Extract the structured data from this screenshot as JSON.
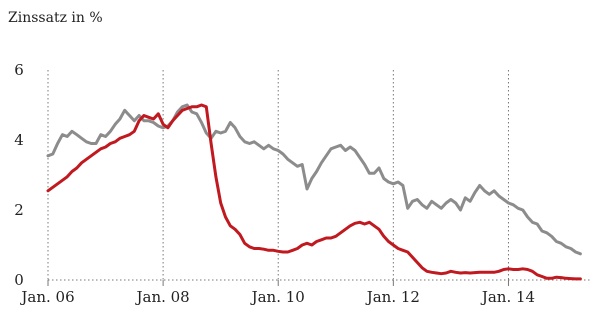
{
  "chart_data": {
    "type": "line",
    "title": "",
    "xlabel": "",
    "ylabel": "Zinssatz in %",
    "xlim": [
      "2006-01",
      "2015-06"
    ],
    "ylim": [
      0,
      6
    ],
    "y_ticks": [
      {
        "value": 0,
        "label": "0"
      },
      {
        "value": 2,
        "label": "2"
      },
      {
        "value": 4,
        "label": "4"
      },
      {
        "value": 6,
        "label": "6"
      }
    ],
    "x_ticks": [
      {
        "value": "2006-01",
        "label": "Jan. 06"
      },
      {
        "value": "2008-01",
        "label": "Jan. 08"
      },
      {
        "value": "2010-01",
        "label": "Jan. 10"
      },
      {
        "value": "2012-01",
        "label": "Jan. 12"
      },
      {
        "value": "2014-01",
        "label": "Jan. 14"
      }
    ],
    "grid": "vertical dotted lines at x ticks",
    "legend": "none",
    "series": [
      {
        "color": "#8c8c8c",
        "points": [
          [
            "2006-01",
            3.55
          ],
          [
            "2006-02",
            3.6
          ],
          [
            "2006-03",
            3.9
          ],
          [
            "2006-04",
            4.15
          ],
          [
            "2006-05",
            4.1
          ],
          [
            "2006-06",
            4.25
          ],
          [
            "2006-07",
            4.15
          ],
          [
            "2006-08",
            4.05
          ],
          [
            "2006-09",
            3.95
          ],
          [
            "2006-10",
            3.9
          ],
          [
            "2006-11",
            3.9
          ],
          [
            "2006-12",
            4.15
          ],
          [
            "2007-01",
            4.1
          ],
          [
            "2007-02",
            4.25
          ],
          [
            "2007-03",
            4.45
          ],
          [
            "2007-04",
            4.6
          ],
          [
            "2007-05",
            4.85
          ],
          [
            "2007-06",
            4.7
          ],
          [
            "2007-07",
            4.55
          ],
          [
            "2007-08",
            4.7
          ],
          [
            "2007-09",
            4.55
          ],
          [
            "2007-10",
            4.55
          ],
          [
            "2007-11",
            4.5
          ],
          [
            "2007-12",
            4.4
          ],
          [
            "2008-01",
            4.35
          ],
          [
            "2008-02",
            4.4
          ],
          [
            "2008-03",
            4.55
          ],
          [
            "2008-04",
            4.8
          ],
          [
            "2008-05",
            4.95
          ],
          [
            "2008-06",
            5.0
          ],
          [
            "2008-07",
            4.8
          ],
          [
            "2008-08",
            4.75
          ],
          [
            "2008-09",
            4.5
          ],
          [
            "2008-10",
            4.2
          ],
          [
            "2008-11",
            4.05
          ],
          [
            "2008-12",
            4.25
          ],
          [
            "2009-01",
            4.2
          ],
          [
            "2009-02",
            4.25
          ],
          [
            "2009-03",
            4.5
          ],
          [
            "2009-04",
            4.35
          ],
          [
            "2009-05",
            4.1
          ],
          [
            "2009-06",
            3.95
          ],
          [
            "2009-07",
            3.9
          ],
          [
            "2009-08",
            3.95
          ],
          [
            "2009-09",
            3.85
          ],
          [
            "2009-10",
            3.75
          ],
          [
            "2009-11",
            3.85
          ],
          [
            "2009-12",
            3.75
          ],
          [
            "2010-01",
            3.7
          ],
          [
            "2010-02",
            3.6
          ],
          [
            "2010-03",
            3.45
          ],
          [
            "2010-04",
            3.35
          ],
          [
            "2010-05",
            3.25
          ],
          [
            "2010-06",
            3.3
          ],
          [
            "2010-07",
            2.6
          ],
          [
            "2010-08",
            2.9
          ],
          [
            "2010-09",
            3.1
          ],
          [
            "2010-10",
            3.35
          ],
          [
            "2010-11",
            3.55
          ],
          [
            "2010-12",
            3.75
          ],
          [
            "2011-01",
            3.8
          ],
          [
            "2011-02",
            3.85
          ],
          [
            "2011-03",
            3.7
          ],
          [
            "2011-04",
            3.8
          ],
          [
            "2011-05",
            3.7
          ],
          [
            "2011-06",
            3.5
          ],
          [
            "2011-07",
            3.3
          ],
          [
            "2011-08",
            3.05
          ],
          [
            "2011-09",
            3.05
          ],
          [
            "2011-10",
            3.2
          ],
          [
            "2011-11",
            2.9
          ],
          [
            "2011-12",
            2.8
          ],
          [
            "2012-01",
            2.75
          ],
          [
            "2012-02",
            2.8
          ],
          [
            "2012-03",
            2.7
          ],
          [
            "2012-04",
            2.05
          ],
          [
            "2012-05",
            2.25
          ],
          [
            "2012-06",
            2.3
          ],
          [
            "2012-07",
            2.15
          ],
          [
            "2012-08",
            2.05
          ],
          [
            "2012-09",
            2.25
          ],
          [
            "2012-10",
            2.15
          ],
          [
            "2012-11",
            2.05
          ],
          [
            "2012-12",
            2.2
          ],
          [
            "2013-01",
            2.3
          ],
          [
            "2013-02",
            2.2
          ],
          [
            "2013-03",
            2.0
          ],
          [
            "2013-04",
            2.35
          ],
          [
            "2013-05",
            2.25
          ],
          [
            "2013-06",
            2.5
          ],
          [
            "2013-07",
            2.7
          ],
          [
            "2013-08",
            2.55
          ],
          [
            "2013-09",
            2.45
          ],
          [
            "2013-10",
            2.55
          ],
          [
            "2013-11",
            2.4
          ],
          [
            "2013-12",
            2.3
          ],
          [
            "2014-01",
            2.2
          ],
          [
            "2014-02",
            2.15
          ],
          [
            "2014-03",
            2.05
          ],
          [
            "2014-04",
            2.0
          ],
          [
            "2014-05",
            1.8
          ],
          [
            "2014-06",
            1.65
          ],
          [
            "2014-07",
            1.6
          ],
          [
            "2014-08",
            1.4
          ],
          [
            "2014-09",
            1.35
          ],
          [
            "2014-10",
            1.25
          ],
          [
            "2014-11",
            1.1
          ],
          [
            "2014-12",
            1.05
          ],
          [
            "2015-01",
            0.95
          ],
          [
            "2015-02",
            0.9
          ],
          [
            "2015-03",
            0.8
          ],
          [
            "2015-04",
            0.75
          ]
        ]
      },
      {
        "color": "#c0191f",
        "points": [
          [
            "2006-01",
            2.55
          ],
          [
            "2006-02",
            2.65
          ],
          [
            "2006-03",
            2.75
          ],
          [
            "2006-04",
            2.85
          ],
          [
            "2006-05",
            2.95
          ],
          [
            "2006-06",
            3.1
          ],
          [
            "2006-07",
            3.2
          ],
          [
            "2006-08",
            3.35
          ],
          [
            "2006-09",
            3.45
          ],
          [
            "2006-10",
            3.55
          ],
          [
            "2006-11",
            3.65
          ],
          [
            "2006-12",
            3.75
          ],
          [
            "2007-01",
            3.8
          ],
          [
            "2007-02",
            3.9
          ],
          [
            "2007-03",
            3.95
          ],
          [
            "2007-04",
            4.05
          ],
          [
            "2007-05",
            4.1
          ],
          [
            "2007-06",
            4.15
          ],
          [
            "2007-07",
            4.25
          ],
          [
            "2007-08",
            4.55
          ],
          [
            "2007-09",
            4.7
          ],
          [
            "2007-10",
            4.65
          ],
          [
            "2007-11",
            4.6
          ],
          [
            "2007-12",
            4.75
          ],
          [
            "2008-01",
            4.45
          ],
          [
            "2008-02",
            4.35
          ],
          [
            "2008-03",
            4.55
          ],
          [
            "2008-04",
            4.7
          ],
          [
            "2008-05",
            4.85
          ],
          [
            "2008-06",
            4.9
          ],
          [
            "2008-07",
            4.95
          ],
          [
            "2008-08",
            4.95
          ],
          [
            "2008-09",
            5.0
          ],
          [
            "2008-10",
            4.95
          ],
          [
            "2008-11",
            3.9
          ],
          [
            "2008-12",
            2.95
          ],
          [
            "2009-01",
            2.2
          ],
          [
            "2009-02",
            1.8
          ],
          [
            "2009-03",
            1.55
          ],
          [
            "2009-04",
            1.45
          ],
          [
            "2009-05",
            1.3
          ],
          [
            "2009-06",
            1.05
          ],
          [
            "2009-07",
            0.95
          ],
          [
            "2009-08",
            0.9
          ],
          [
            "2009-09",
            0.9
          ],
          [
            "2009-10",
            0.88
          ],
          [
            "2009-11",
            0.85
          ],
          [
            "2009-12",
            0.85
          ],
          [
            "2010-01",
            0.82
          ],
          [
            "2010-02",
            0.8
          ],
          [
            "2010-03",
            0.8
          ],
          [
            "2010-04",
            0.85
          ],
          [
            "2010-05",
            0.9
          ],
          [
            "2010-06",
            1.0
          ],
          [
            "2010-07",
            1.05
          ],
          [
            "2010-08",
            1.0
          ],
          [
            "2010-09",
            1.1
          ],
          [
            "2010-10",
            1.15
          ],
          [
            "2010-11",
            1.2
          ],
          [
            "2010-12",
            1.2
          ],
          [
            "2011-01",
            1.25
          ],
          [
            "2011-02",
            1.35
          ],
          [
            "2011-03",
            1.45
          ],
          [
            "2011-04",
            1.55
          ],
          [
            "2011-05",
            1.62
          ],
          [
            "2011-06",
            1.65
          ],
          [
            "2011-07",
            1.6
          ],
          [
            "2011-08",
            1.65
          ],
          [
            "2011-09",
            1.55
          ],
          [
            "2011-10",
            1.45
          ],
          [
            "2011-11",
            1.25
          ],
          [
            "2011-12",
            1.1
          ],
          [
            "2012-01",
            1.0
          ],
          [
            "2012-02",
            0.9
          ],
          [
            "2012-03",
            0.85
          ],
          [
            "2012-04",
            0.8
          ],
          [
            "2012-05",
            0.65
          ],
          [
            "2012-06",
            0.5
          ],
          [
            "2012-07",
            0.35
          ],
          [
            "2012-08",
            0.25
          ],
          [
            "2012-09",
            0.22
          ],
          [
            "2012-10",
            0.2
          ],
          [
            "2012-11",
            0.18
          ],
          [
            "2012-12",
            0.2
          ],
          [
            "2013-01",
            0.25
          ],
          [
            "2013-02",
            0.22
          ],
          [
            "2013-03",
            0.2
          ],
          [
            "2013-04",
            0.21
          ],
          [
            "2013-05",
            0.2
          ],
          [
            "2013-06",
            0.21
          ],
          [
            "2013-07",
            0.22
          ],
          [
            "2013-08",
            0.22
          ],
          [
            "2013-09",
            0.22
          ],
          [
            "2013-10",
            0.22
          ],
          [
            "2013-11",
            0.25
          ],
          [
            "2013-12",
            0.3
          ],
          [
            "2014-01",
            0.32
          ],
          [
            "2014-02",
            0.3
          ],
          [
            "2014-03",
            0.3
          ],
          [
            "2014-04",
            0.32
          ],
          [
            "2014-05",
            0.3
          ],
          [
            "2014-06",
            0.25
          ],
          [
            "2014-07",
            0.15
          ],
          [
            "2014-08",
            0.1
          ],
          [
            "2014-09",
            0.05
          ],
          [
            "2014-10",
            0.05
          ],
          [
            "2014-11",
            0.08
          ],
          [
            "2014-12",
            0.07
          ],
          [
            "2015-01",
            0.05
          ],
          [
            "2015-02",
            0.04
          ],
          [
            "2015-03",
            0.03
          ],
          [
            "2015-04",
            0.03
          ]
        ]
      }
    ]
  }
}
